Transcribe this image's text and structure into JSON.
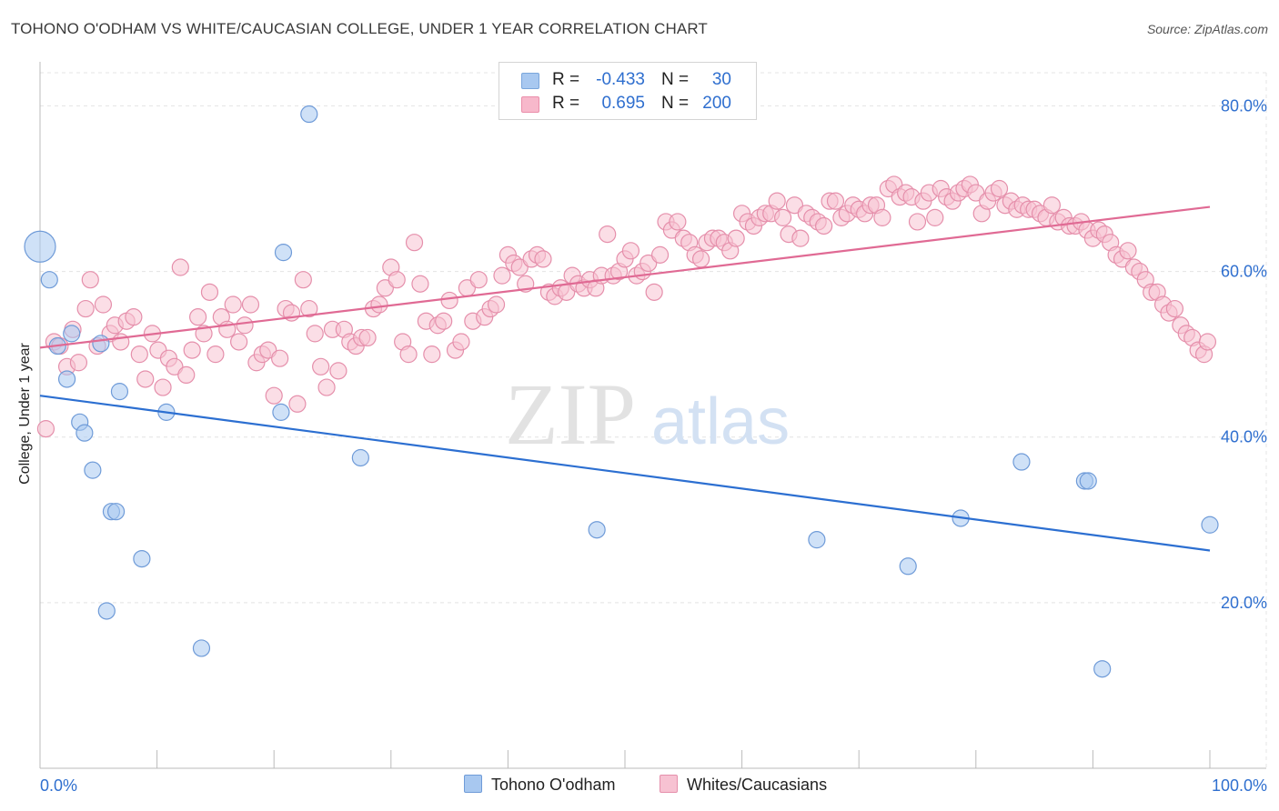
{
  "title": "TOHONO O'ODHAM VS WHITE/CAUCASIAN COLLEGE, UNDER 1 YEAR CORRELATION CHART",
  "source": "Source: ZipAtlas.com",
  "watermark": {
    "zip": "ZIP",
    "atlas": "atlas"
  },
  "legend": {
    "rows": [
      {
        "r_label": "R =",
        "r_value": "-0.433",
        "n_label": "N =",
        "n_value": "30",
        "color": "#a8c8f0",
        "border": "#7aa6dc"
      },
      {
        "r_label": "R =",
        "r_value": "0.695",
        "n_label": "N =",
        "n_value": "200",
        "color": "#f7b8cb",
        "border": "#ea8eaa"
      }
    ]
  },
  "bottom_legend": [
    {
      "label": "Tohono O'odham",
      "color": "#a8c8f0",
      "border": "#6f9bd8"
    },
    {
      "label": "Whites/Caucasians",
      "color": "#f7c2d2",
      "border": "#e58fab"
    }
  ],
  "chart_data": {
    "type": "scatter",
    "title": "TOHONO O'ODHAM VS WHITE/CAUCASIAN COLLEGE, UNDER 1 YEAR CORRELATION CHART",
    "xlabel": "",
    "ylabel": "College, Under 1 year",
    "xlim": [
      0,
      100
    ],
    "ylim": [
      0,
      84
    ],
    "x_tick_labels": [
      "0.0%",
      "100.0%"
    ],
    "y_ticks": [
      20,
      40,
      60,
      80
    ],
    "y_tick_labels": [
      "20.0%",
      "40.0%",
      "60.0%",
      "80.0%"
    ],
    "grid": true,
    "series": [
      {
        "name": "Tohono O'odham",
        "color": "#6f9bd8",
        "fill": "#a8c8f0",
        "trend": {
          "x": [
            0,
            100
          ],
          "y": [
            45.0,
            26.3
          ]
        },
        "points": [
          [
            0,
            63,
            3
          ],
          [
            0.8,
            59,
            1
          ],
          [
            1.5,
            51,
            1
          ],
          [
            2.3,
            47,
            1
          ],
          [
            2.7,
            52.5,
            1
          ],
          [
            3.4,
            41.8,
            1
          ],
          [
            3.8,
            40.5,
            1
          ],
          [
            4.5,
            36,
            1
          ],
          [
            5.2,
            51.3,
            1
          ],
          [
            5.7,
            19,
            1
          ],
          [
            6.1,
            31,
            1
          ],
          [
            6.5,
            31,
            1
          ],
          [
            6.8,
            45.5,
            1
          ],
          [
            8.7,
            25.3,
            1
          ],
          [
            10.8,
            43,
            1
          ],
          [
            13.8,
            14.5,
            1
          ],
          [
            20.6,
            43,
            1
          ],
          [
            20.8,
            62.3,
            1
          ],
          [
            23,
            79,
            1
          ],
          [
            27.4,
            37.5,
            1
          ],
          [
            47.6,
            28.8,
            1
          ],
          [
            66.4,
            27.6,
            1
          ],
          [
            74.2,
            24.4,
            1
          ],
          [
            78.7,
            30.2,
            1
          ],
          [
            83.9,
            37,
            1
          ],
          [
            89.3,
            34.7,
            1
          ],
          [
            89.6,
            34.7,
            1
          ],
          [
            90.8,
            12,
            1
          ],
          [
            100,
            29.4,
            1
          ]
        ]
      },
      {
        "name": "Whites/Caucasians",
        "color": "#e58fab",
        "fill": "#f7c2d2",
        "trend": {
          "x": [
            0,
            100
          ],
          "y": [
            50.8,
            67.8
          ]
        },
        "points": [
          [
            0.5,
            41,
            1
          ],
          [
            1.2,
            51.5,
            1
          ],
          [
            1.7,
            51,
            1
          ],
          [
            2.3,
            48.5,
            1
          ],
          [
            2.8,
            53,
            1
          ],
          [
            3.3,
            49,
            1
          ],
          [
            3.9,
            55.5,
            1
          ],
          [
            4.3,
            59,
            1
          ],
          [
            4.9,
            51,
            1
          ],
          [
            5.4,
            56,
            1
          ],
          [
            6.0,
            52.5,
            1
          ],
          [
            6.4,
            53.5,
            1
          ],
          [
            6.9,
            51.5,
            1
          ],
          [
            7.4,
            54,
            1
          ],
          [
            8.0,
            54.5,
            1
          ],
          [
            8.5,
            50,
            1
          ],
          [
            9.0,
            47,
            1
          ],
          [
            9.6,
            52.5,
            1
          ],
          [
            10.1,
            50.5,
            1
          ],
          [
            10.5,
            46,
            1
          ],
          [
            11.0,
            49.5,
            1
          ],
          [
            11.5,
            48.5,
            1
          ],
          [
            12.0,
            60.5,
            1
          ],
          [
            12.5,
            47.5,
            1
          ],
          [
            13.0,
            50.5,
            1
          ],
          [
            13.5,
            54.5,
            1
          ],
          [
            14.0,
            52.5,
            1
          ],
          [
            14.5,
            57.5,
            1
          ],
          [
            15.0,
            50,
            1
          ],
          [
            15.5,
            54.5,
            1
          ],
          [
            16.0,
            53,
            1
          ],
          [
            16.5,
            56,
            1
          ],
          [
            17.0,
            51.5,
            1
          ],
          [
            17.5,
            53.5,
            1
          ],
          [
            18.0,
            56,
            1
          ],
          [
            18.5,
            49,
            1
          ],
          [
            19.0,
            50,
            1
          ],
          [
            19.5,
            50.5,
            1
          ],
          [
            20.0,
            45,
            1
          ],
          [
            20.5,
            49.5,
            1
          ],
          [
            21.0,
            55.5,
            1
          ],
          [
            21.5,
            55,
            1
          ],
          [
            22.0,
            44,
            1
          ],
          [
            22.5,
            59,
            1
          ],
          [
            23.0,
            55.5,
            1
          ],
          [
            23.5,
            52.5,
            1
          ],
          [
            24.0,
            48.5,
            1
          ],
          [
            24.5,
            46,
            1
          ],
          [
            25.0,
            53,
            1
          ],
          [
            25.5,
            48,
            1
          ],
          [
            26.0,
            53,
            1
          ],
          [
            26.5,
            51.5,
            1
          ],
          [
            27.0,
            51,
            1
          ],
          [
            27.5,
            52,
            1
          ],
          [
            28.0,
            52,
            1
          ],
          [
            28.5,
            55.5,
            1
          ],
          [
            29.0,
            56,
            1
          ],
          [
            29.5,
            58,
            1
          ],
          [
            30.0,
            60.5,
            1
          ],
          [
            30.5,
            59,
            1
          ],
          [
            31.0,
            51.5,
            1
          ],
          [
            31.5,
            50,
            1
          ],
          [
            32.0,
            63.5,
            1
          ],
          [
            32.5,
            58.5,
            1
          ],
          [
            33.0,
            54,
            1
          ],
          [
            33.5,
            50,
            1
          ],
          [
            34.0,
            53.5,
            1
          ],
          [
            34.5,
            54,
            1
          ],
          [
            35.0,
            56.5,
            1
          ],
          [
            35.5,
            50.5,
            1
          ],
          [
            36.0,
            51.5,
            1
          ],
          [
            36.5,
            58,
            1
          ],
          [
            37.0,
            54,
            1
          ],
          [
            37.5,
            59,
            1
          ],
          [
            38.0,
            54.5,
            1
          ],
          [
            38.5,
            55.5,
            1
          ],
          [
            39.0,
            56,
            1
          ],
          [
            39.5,
            59.5,
            1
          ],
          [
            40.0,
            62,
            1
          ],
          [
            40.5,
            61,
            1
          ],
          [
            41.0,
            60.5,
            1
          ],
          [
            41.5,
            58.5,
            1
          ],
          [
            42.0,
            61.5,
            1
          ],
          [
            42.5,
            62,
            1
          ],
          [
            43.0,
            61.5,
            1
          ],
          [
            43.5,
            57.5,
            1
          ],
          [
            44.0,
            57,
            1
          ],
          [
            44.5,
            58,
            1
          ],
          [
            45.0,
            57.5,
            1
          ],
          [
            45.5,
            59.5,
            1
          ],
          [
            46.0,
            58.5,
            1
          ],
          [
            46.5,
            58,
            1
          ],
          [
            47.0,
            59,
            1
          ],
          [
            47.5,
            58,
            1
          ],
          [
            48.0,
            59.5,
            1
          ],
          [
            48.5,
            64.5,
            1
          ],
          [
            49.0,
            59.5,
            1
          ],
          [
            49.5,
            60,
            1
          ],
          [
            50.0,
            61.5,
            1
          ],
          [
            50.5,
            62.5,
            1
          ],
          [
            51.0,
            59.5,
            1
          ],
          [
            51.5,
            60,
            1
          ],
          [
            52.0,
            61,
            1
          ],
          [
            52.5,
            57.5,
            1
          ],
          [
            53.0,
            62,
            1
          ],
          [
            53.5,
            66,
            1
          ],
          [
            54.0,
            65,
            1
          ],
          [
            54.5,
            66,
            1
          ],
          [
            55.0,
            64,
            1
          ],
          [
            55.5,
            63.5,
            1
          ],
          [
            56.0,
            62,
            1
          ],
          [
            56.5,
            61.5,
            1
          ],
          [
            57.0,
            63.5,
            1
          ],
          [
            57.5,
            64,
            1
          ],
          [
            58.0,
            64,
            1
          ],
          [
            58.5,
            63.5,
            1
          ],
          [
            59.0,
            62.5,
            1
          ],
          [
            59.5,
            64,
            1
          ],
          [
            60.0,
            67,
            1
          ],
          [
            60.5,
            66,
            1
          ],
          [
            61.0,
            65.5,
            1
          ],
          [
            61.5,
            66.5,
            1
          ],
          [
            62.0,
            67,
            1
          ],
          [
            62.5,
            67,
            1
          ],
          [
            63.0,
            68.5,
            1
          ],
          [
            63.5,
            66.5,
            1
          ],
          [
            64.0,
            64.5,
            1
          ],
          [
            64.5,
            68,
            1
          ],
          [
            65.0,
            64,
            1
          ],
          [
            65.5,
            67,
            1
          ],
          [
            66.0,
            66.5,
            1
          ],
          [
            66.5,
            66,
            1
          ],
          [
            67.0,
            65.5,
            1
          ],
          [
            67.5,
            68.5,
            1
          ],
          [
            68.0,
            68.5,
            1
          ],
          [
            68.5,
            66.5,
            1
          ],
          [
            69.0,
            67,
            1
          ],
          [
            69.5,
            68,
            1
          ],
          [
            70.0,
            67.5,
            1
          ],
          [
            70.5,
            67,
            1
          ],
          [
            71.0,
            68,
            1
          ],
          [
            71.5,
            68,
            1
          ],
          [
            72.0,
            66.5,
            1
          ],
          [
            72.5,
            70,
            1
          ],
          [
            73.0,
            70.5,
            1
          ],
          [
            73.5,
            69,
            1
          ],
          [
            74.0,
            69.5,
            1
          ],
          [
            74.5,
            69,
            1
          ],
          [
            75.0,
            66,
            1
          ],
          [
            75.5,
            68.5,
            1
          ],
          [
            76.0,
            69.5,
            1
          ],
          [
            76.5,
            66.5,
            1
          ],
          [
            77.0,
            70,
            1
          ],
          [
            77.5,
            69,
            1
          ],
          [
            78.0,
            68.5,
            1
          ],
          [
            78.5,
            69.5,
            1
          ],
          [
            79.0,
            70,
            1
          ],
          [
            79.5,
            70.5,
            1
          ],
          [
            80.0,
            69.5,
            1
          ],
          [
            80.5,
            67,
            1
          ],
          [
            81.0,
            68.5,
            1
          ],
          [
            81.5,
            69.5,
            1
          ],
          [
            82.0,
            70,
            1
          ],
          [
            82.5,
            68,
            1
          ],
          [
            83.0,
            68.5,
            1
          ],
          [
            83.5,
            67.5,
            1
          ],
          [
            84.0,
            68,
            1
          ],
          [
            84.5,
            67.5,
            1
          ],
          [
            85.0,
            67.5,
            1
          ],
          [
            85.5,
            67,
            1
          ],
          [
            86.0,
            66.5,
            1
          ],
          [
            86.5,
            68,
            1
          ],
          [
            87.0,
            66,
            1
          ],
          [
            87.5,
            66.5,
            1
          ],
          [
            88.0,
            65.5,
            1
          ],
          [
            88.5,
            65.5,
            1
          ],
          [
            89.0,
            66,
            1
          ],
          [
            89.5,
            65,
            1
          ],
          [
            90.0,
            64,
            1
          ],
          [
            90.5,
            65,
            1
          ],
          [
            91.0,
            64.5,
            1
          ],
          [
            91.5,
            63.5,
            1
          ],
          [
            92.0,
            62,
            1
          ],
          [
            92.5,
            61.5,
            1
          ],
          [
            93.0,
            62.5,
            1
          ],
          [
            93.5,
            60.5,
            1
          ],
          [
            94.0,
            60,
            1
          ],
          [
            94.5,
            59,
            1
          ],
          [
            95.0,
            57.5,
            1
          ],
          [
            95.5,
            57.5,
            1
          ],
          [
            96.0,
            56,
            1
          ],
          [
            96.5,
            55,
            1
          ],
          [
            97.0,
            55.5,
            1
          ],
          [
            97.5,
            53.5,
            1
          ],
          [
            98.0,
            52.5,
            1
          ],
          [
            98.5,
            52,
            1
          ],
          [
            99.0,
            50.5,
            1
          ],
          [
            99.5,
            50,
            1
          ],
          [
            99.8,
            51.5,
            1
          ]
        ]
      }
    ]
  }
}
